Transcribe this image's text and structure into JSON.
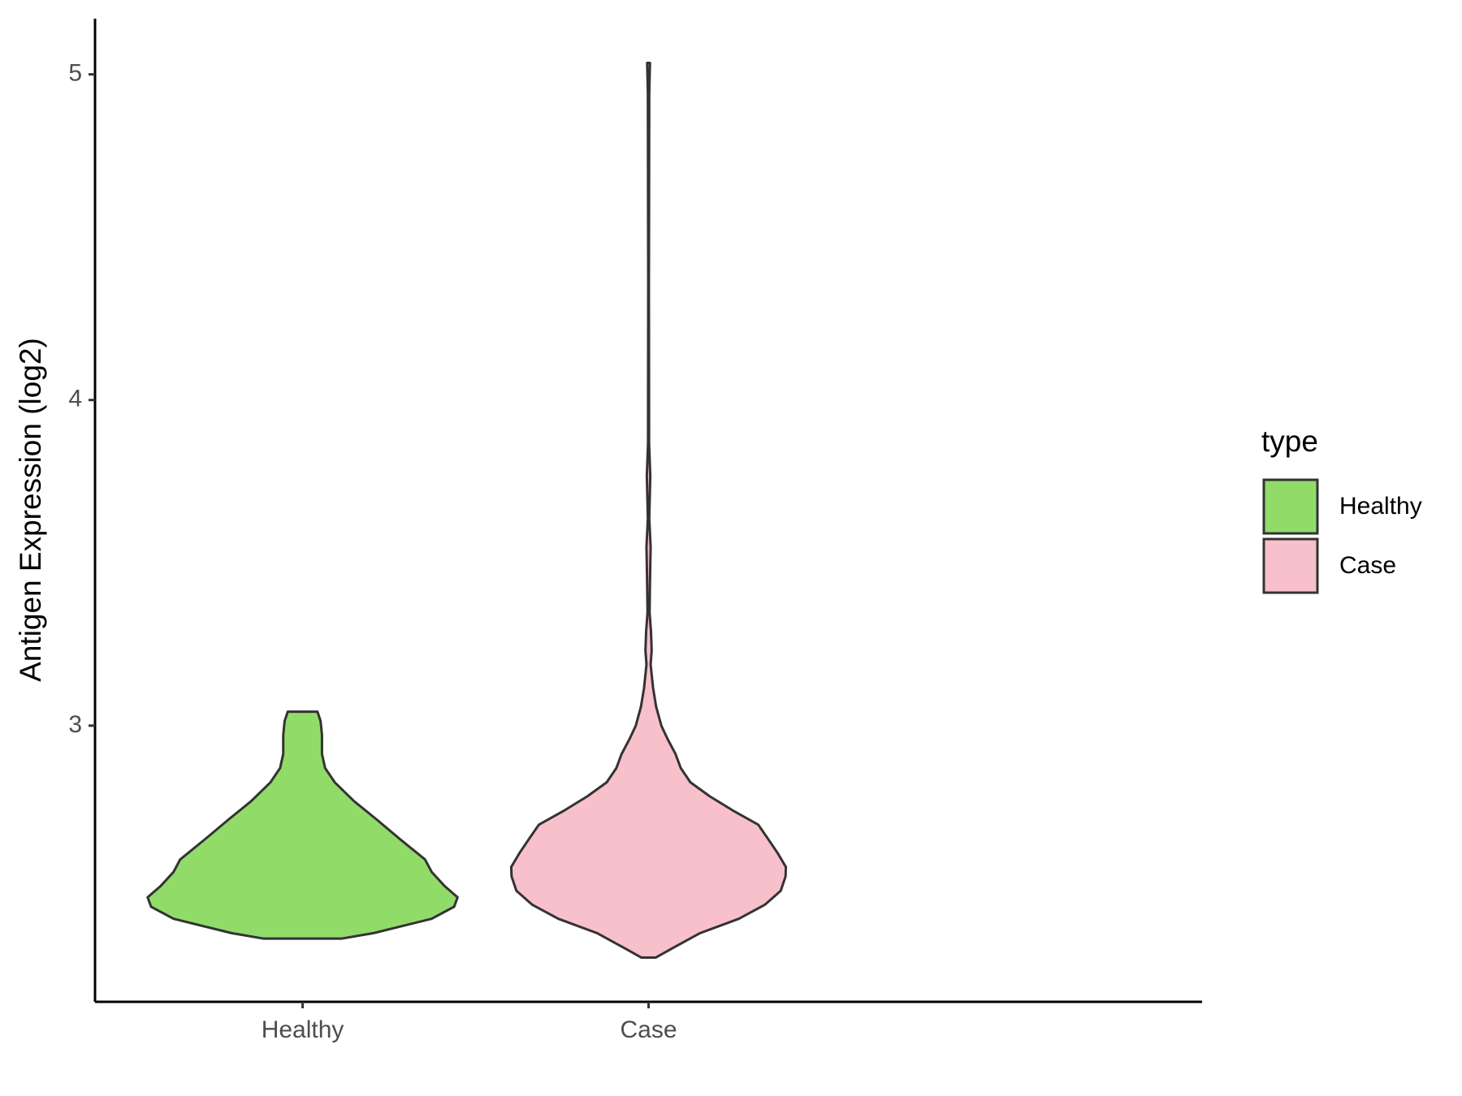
{
  "chart_data": {
    "type": "violin",
    "y_label": "Antigen Expression (log2)",
    "categories": [
      "Healthy",
      "Case"
    ],
    "legend_title": "type",
    "legend_position": "right",
    "ylim": [
      2.152,
      5.171
    ],
    "yticks": [
      3,
      4,
      5
    ],
    "grid": false,
    "series": [
      {
        "name": "Healthy",
        "color": "#91dc69",
        "values": [
          2.346,
          2.363,
          2.407,
          2.444,
          2.473,
          2.508,
          2.551,
          2.589,
          2.653,
          2.711,
          2.768,
          2.826,
          2.87,
          2.913,
          2.971,
          3.014,
          3.043
        ],
        "density": [
          0.112,
          0.205,
          0.373,
          0.438,
          0.448,
          0.41,
          0.373,
          0.354,
          0.28,
          0.215,
          0.149,
          0.093,
          0.065,
          0.056,
          0.056,
          0.052,
          0.043
        ]
      },
      {
        "name": "Case",
        "color": "#f8c0cb",
        "values": [
          2.288,
          2.32,
          2.363,
          2.407,
          2.45,
          2.493,
          2.537,
          2.566,
          2.609,
          2.653,
          2.696,
          2.74,
          2.783,
          2.826,
          2.87,
          2.913,
          2.957,
          3.0,
          3.058,
          3.116,
          3.188,
          3.231,
          3.289,
          3.347,
          3.434,
          3.55,
          3.637,
          3.767,
          3.868,
          4.36,
          4.942,
          5.035
        ],
        "density": [
          0.021,
          0.075,
          0.149,
          0.261,
          0.336,
          0.382,
          0.396,
          0.397,
          0.373,
          0.345,
          0.317,
          0.243,
          0.177,
          0.121,
          0.093,
          0.078,
          0.056,
          0.037,
          0.022,
          0.013,
          0.006,
          0.009,
          0.007,
          0.003,
          0.004,
          0.006,
          0.002,
          0.005,
          0.0015,
          0.001,
          0.002,
          0.004
        ]
      }
    ]
  }
}
